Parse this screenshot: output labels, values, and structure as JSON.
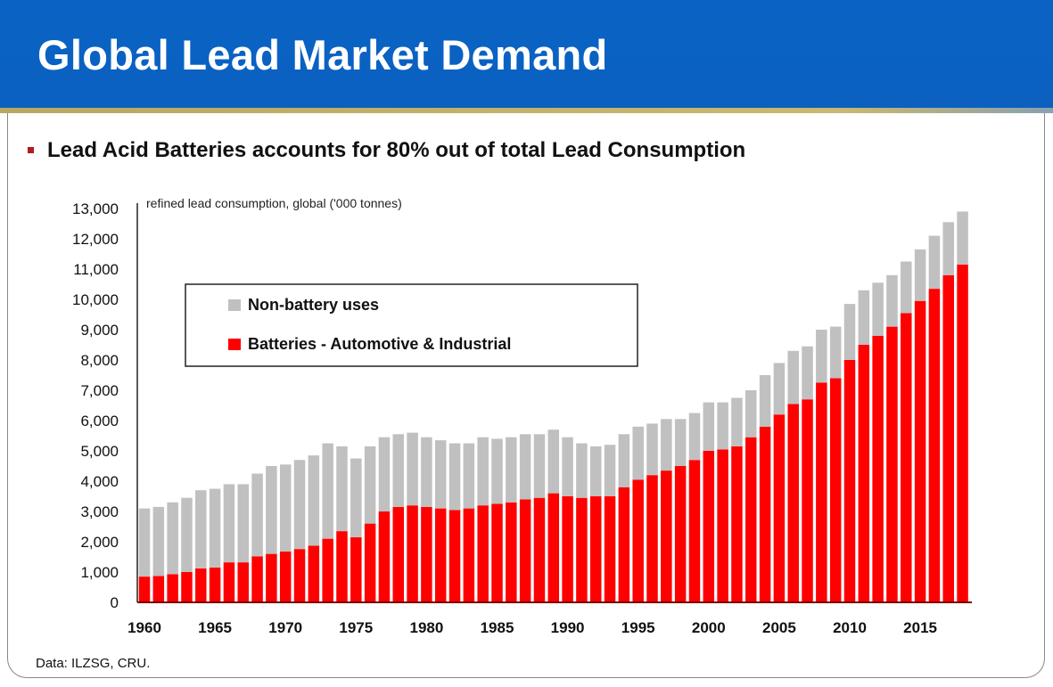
{
  "slide": {
    "title": "Global Lead Market Demand",
    "subtitle": "Lead Acid Batteries accounts for 80% out of total Lead Consumption",
    "footer": "Data: ILZSG, CRU."
  },
  "colors": {
    "header": "#0a63c4",
    "battery": "#ff0000",
    "non_battery": "#c0c0c0"
  },
  "chart_data": {
    "type": "bar",
    "stacked": true,
    "ylabel": "refined lead consumption, global ('000 tonnes)",
    "ylim": [
      0,
      13000
    ],
    "yticks": [
      "0",
      "1,000",
      "2,000",
      "3,000",
      "4,000",
      "5,000",
      "6,000",
      "7,000",
      "8,000",
      "9,000",
      "10,000",
      "11,000",
      "12,000",
      "13,000"
    ],
    "xtick_labels": [
      "1960",
      "1965",
      "1970",
      "1975",
      "1980",
      "1985",
      "1990",
      "1995",
      "2000",
      "2005",
      "2010",
      "2015"
    ],
    "legend": {
      "placement": "top-left"
    },
    "categories": [
      1960,
      1961,
      1962,
      1963,
      1964,
      1965,
      1966,
      1967,
      1968,
      1969,
      1970,
      1971,
      1972,
      1973,
      1974,
      1975,
      1976,
      1977,
      1978,
      1979,
      1980,
      1981,
      1982,
      1983,
      1984,
      1985,
      1986,
      1987,
      1988,
      1989,
      1990,
      1991,
      1992,
      1993,
      1994,
      1995,
      1996,
      1997,
      1998,
      1999,
      2000,
      2001,
      2002,
      2003,
      2004,
      2005,
      2006,
      2007,
      2008,
      2009,
      2010,
      2011,
      2012,
      2013,
      2014,
      2015,
      2016,
      2017,
      2018
    ],
    "series": [
      {
        "name": "Batteries - Automotive & Industrial",
        "color": "#ff0000",
        "values": [
          850,
          870,
          930,
          1000,
          1120,
          1150,
          1320,
          1320,
          1520,
          1600,
          1680,
          1760,
          1870,
          2100,
          2350,
          2150,
          2600,
          3000,
          3150,
          3200,
          3150,
          3100,
          3050,
          3100,
          3200,
          3250,
          3300,
          3400,
          3450,
          3600,
          3500,
          3450,
          3500,
          3500,
          3800,
          4050,
          4200,
          4350,
          4500,
          4700,
          5000,
          5050,
          5150,
          5450,
          5800,
          6200,
          6550,
          6700,
          7250,
          7400,
          8000,
          8500,
          8800,
          9100,
          9550,
          9950,
          10350,
          10800,
          11150
        ]
      },
      {
        "name": "Non-battery uses",
        "color": "#c0c0c0",
        "values": [
          2250,
          2280,
          2370,
          2450,
          2580,
          2600,
          2580,
          2580,
          2730,
          2900,
          2870,
          2940,
          2980,
          3150,
          2800,
          2600,
          2550,
          2450,
          2400,
          2400,
          2300,
          2250,
          2200,
          2150,
          2250,
          2150,
          2150,
          2150,
          2100,
          2100,
          1950,
          1800,
          1650,
          1700,
          1750,
          1750,
          1700,
          1700,
          1550,
          1550,
          1600,
          1550,
          1600,
          1550,
          1700,
          1700,
          1750,
          1750,
          1750,
          1700,
          1850,
          1800,
          1750,
          1700,
          1700,
          1700,
          1750,
          1750,
          1750
        ]
      }
    ]
  }
}
